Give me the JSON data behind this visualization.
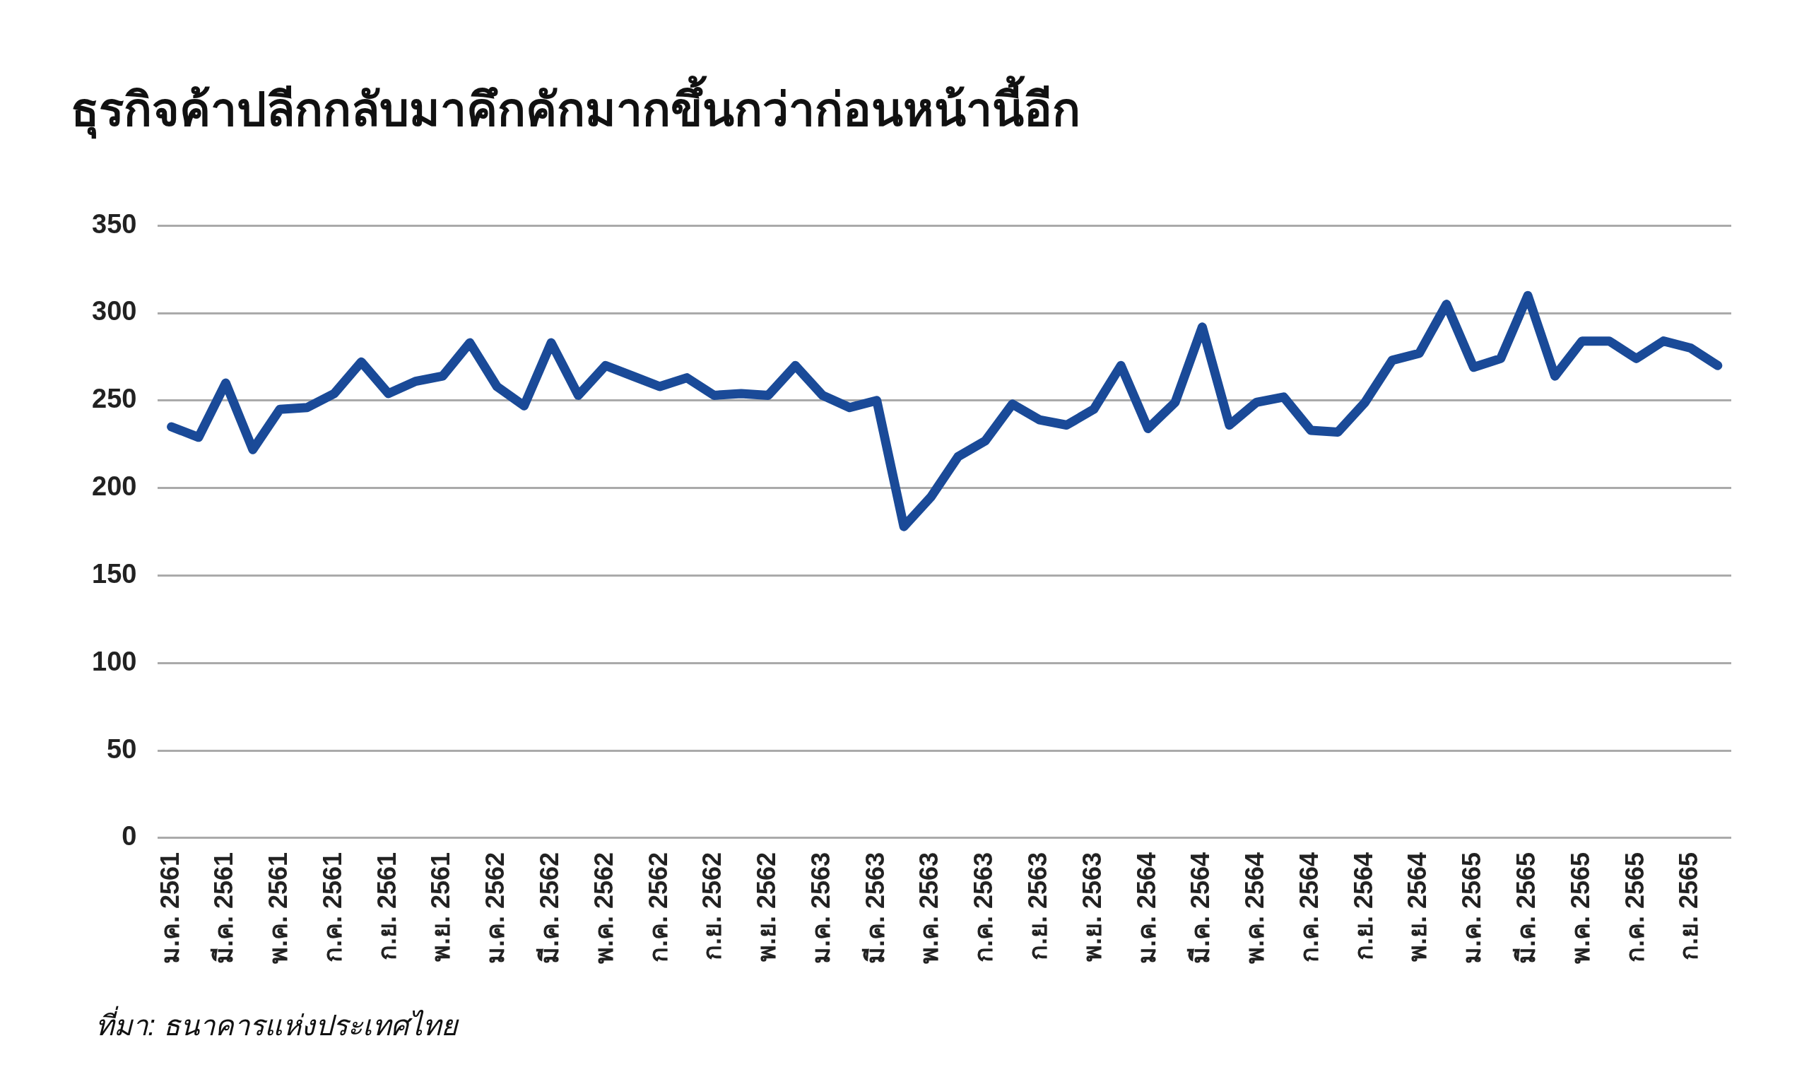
{
  "chart_data": {
    "type": "line",
    "title": "ธุรกิจค้าปลีกกลับมาคึกคักมากขึ้นกว่าก่อนหน้านี้อีก",
    "annotations": [
      "ที่มา: ธนาคารแห่งประเทศไทย"
    ],
    "categories": [
      "ม.ค. 2561",
      null,
      "มี.ค. 2561",
      null,
      "พ.ค. 2561",
      null,
      "ก.ค. 2561",
      null,
      "ก.ย. 2561",
      null,
      "พ.ย. 2561",
      null,
      "ม.ค. 2562",
      null,
      "มี.ค. 2562",
      null,
      "พ.ค. 2562",
      null,
      "ก.ค. 2562",
      null,
      "ก.ย. 2562",
      null,
      "พ.ย. 2562",
      null,
      "ม.ค. 2563",
      null,
      "มี.ค. 2563",
      null,
      "พ.ค. 2563",
      null,
      "ก.ค. 2563",
      null,
      "ก.ย. 2563",
      null,
      "พ.ย. 2563",
      null,
      "ม.ค. 2564",
      null,
      "มี.ค. 2564",
      null,
      "พ.ค. 2564",
      null,
      "ก.ค. 2564",
      null,
      "ก.ย. 2564",
      null,
      "พ.ย. 2564",
      null,
      "ม.ค. 2565",
      null,
      "มี.ค. 2565",
      null,
      "พ.ค. 2565",
      null,
      "ก.ค. 2565",
      null,
      "ก.ย. 2565",
      null
    ],
    "series": [
      {
        "color": "#1a4a98",
        "values": [
          235,
          229,
          260,
          222,
          245,
          246,
          254,
          272,
          254,
          261,
          264,
          283,
          258,
          247,
          283,
          253,
          270,
          264,
          258,
          263,
          253,
          254,
          253,
          270,
          253,
          246,
          250,
          178,
          195,
          218,
          227,
          248,
          239,
          236,
          245,
          270,
          234,
          249,
          292,
          236,
          249,
          252,
          233,
          232,
          249,
          273,
          277,
          305,
          269,
          274,
          310,
          264,
          284,
          284,
          274,
          284,
          280,
          270
        ]
      }
    ],
    "ylim": [
      0,
      350
    ],
    "yticks": [
      0,
      50,
      100,
      150,
      200,
      250,
      300,
      350
    ],
    "grid": "y",
    "legend": false,
    "marker": "none",
    "line_style": "solid"
  }
}
